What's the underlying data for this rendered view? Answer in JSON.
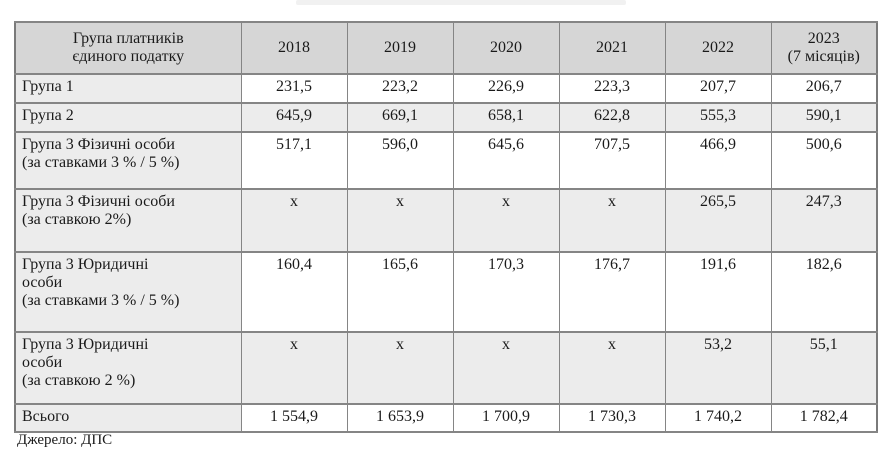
{
  "table": {
    "columns": [
      "Група платників\nєдиного податку",
      "2018",
      "2019",
      "2020",
      "2021",
      "2022",
      "2023\n(7 місяців)"
    ],
    "rows": [
      {
        "label": "Група 1",
        "values": [
          "231,5",
          "223,2",
          "226,9",
          "223,3",
          "207,7",
          "206,7"
        ]
      },
      {
        "label": "Група 2",
        "values": [
          "645,9",
          "669,1",
          "658,1",
          "622,8",
          "555,3",
          "590,1"
        ]
      },
      {
        "label": "Група 3 Фізичні особи\n(за ставками 3 % / 5 %)",
        "values": [
          "517,1",
          "596,0",
          "645,6",
          "707,5",
          "466,9",
          "500,6"
        ]
      },
      {
        "label": "Група 3 Фізичні особи\n(за ставкою 2%)",
        "values": [
          "x",
          "x",
          "x",
          "x",
          "265,5",
          "247,3"
        ]
      },
      {
        "label": "Група 3 Юридичні\nособи\n(за ставками 3 % / 5 %)",
        "values": [
          "160,4",
          "165,6",
          "170,3",
          "176,7",
          "191,6",
          "182,6"
        ]
      },
      {
        "label": "Група 3 Юридичні\nособи\n(за ставкою 2 %)",
        "values": [
          "x",
          "x",
          "x",
          "x",
          "53,2",
          "55,1"
        ]
      },
      {
        "label": "Всього",
        "values": [
          "1 554,9",
          "1 653,9",
          "1 700,9",
          "1 730,3",
          "1 740,2",
          "1 782,4"
        ]
      }
    ],
    "colors": {
      "header_bg": "#d6d6d6",
      "shaded_bg": "#ececec",
      "border": "#858585",
      "text": "#1a1a1a"
    }
  },
  "footer": {
    "source_note": "Джерело: ДПС"
  }
}
